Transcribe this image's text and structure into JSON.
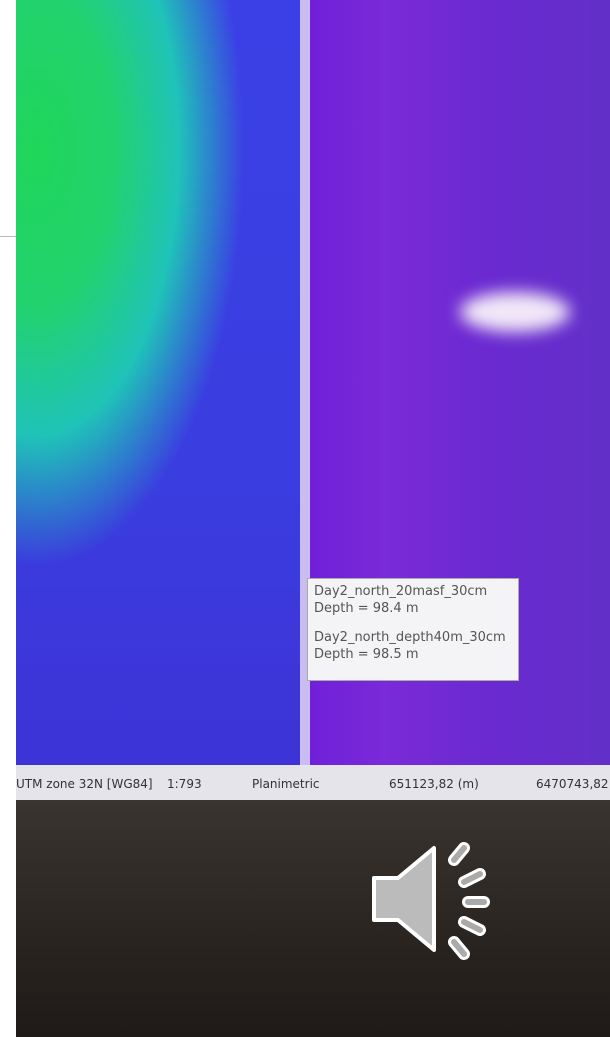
{
  "tooltip": {
    "lines": [
      "Day2_north_20masf_30cm",
      "Depth = 98.4 m",
      "Day2_north_depth40m_30cm",
      "Depth = 98.5 m"
    ]
  },
  "status_bar": {
    "projection": "UTM zone 32N [WG84]",
    "scale": "1:793",
    "mode": "Planimetric",
    "easting": "651123,82 (m)",
    "northing": "6470743,82"
  }
}
